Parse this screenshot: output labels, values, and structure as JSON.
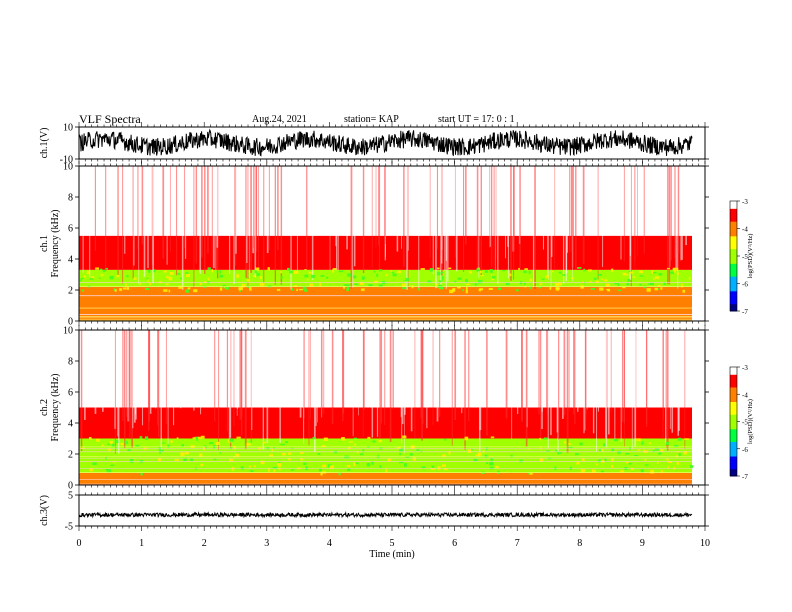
{
  "header": {
    "title": "VLF Spectra",
    "date": "Aug.24, 2021",
    "station": "station= KAP",
    "start": "start  UT =   17: 0  : 1"
  },
  "colormap": {
    "colors": [
      "#000080",
      "#0000ff",
      "#00b0ff",
      "#00ff40",
      "#a0ff00",
      "#ffff00",
      "#ff8000",
      "#ff0000",
      "#ffffff"
    ]
  },
  "chart_data": [
    {
      "type": "line",
      "ylabel": "ch.1(V)",
      "ylim": [
        -10,
        10
      ],
      "yticks": [
        "10",
        "-10"
      ],
      "xlim": [
        0,
        10
      ],
      "description_values": {
        "baseline": 0,
        "amplitude_range": [
          -7,
          7
        ]
      }
    },
    {
      "type": "heatmap",
      "ylabel": [
        "ch.1",
        "Frequency  (kHz)"
      ],
      "ylim": [
        0,
        10
      ],
      "yticks": [
        "0",
        "2",
        "4",
        "6",
        "8",
        "10"
      ],
      "xlim": [
        0,
        10
      ],
      "colorbar": {
        "label": "log(PSD)(V²/Hz)",
        "range": [
          -7,
          -3
        ],
        "ticks": [
          "-3",
          "-4",
          "-5",
          "-6",
          "-7"
        ]
      },
      "bands": [
        {
          "from_khz": 0,
          "to_khz": 2.2,
          "log_psd": -3.8
        },
        {
          "from_khz": 2.2,
          "to_khz": 3.3,
          "log_psd": -4.9
        },
        {
          "from_khz": 3.3,
          "to_khz": 5.5,
          "log_psd": -3.6
        },
        {
          "from_khz": 5.5,
          "to_khz": 10,
          "log_psd": -3.2
        }
      ]
    },
    {
      "type": "heatmap",
      "ylabel": [
        "ch.2",
        "Frequency  (kHz)"
      ],
      "ylim": [
        0,
        10
      ],
      "yticks": [
        "0",
        "2",
        "4",
        "6",
        "8",
        "10"
      ],
      "xlim": [
        0,
        10
      ],
      "colorbar": {
        "label": "log(PSD)(V²/Hz)",
        "range": [
          -7,
          -3
        ],
        "ticks": [
          "-3",
          "-4",
          "-5",
          "-6",
          "-7"
        ]
      },
      "bands": [
        {
          "from_khz": 0,
          "to_khz": 0.8,
          "log_psd": -3.9
        },
        {
          "from_khz": 0.8,
          "to_khz": 3.0,
          "log_psd": -5.0
        },
        {
          "from_khz": 3.0,
          "to_khz": 5.0,
          "log_psd": -3.6
        },
        {
          "from_khz": 5.0,
          "to_khz": 10,
          "log_psd": -3.2
        }
      ]
    },
    {
      "type": "line",
      "ylabel": "ch.3(V)",
      "ylim": [
        -5,
        5
      ],
      "yticks": [
        "5",
        "-5"
      ],
      "xlim": [
        0,
        10
      ],
      "description_values": {
        "baseline": -1.4,
        "amplitude_range": [
          -2.0,
          -0.8
        ]
      }
    }
  ],
  "xaxis": {
    "label": "Time  (min)",
    "ticks": [
      "0",
      "1",
      "2",
      "3",
      "4",
      "5",
      "6",
      "7",
      "8",
      "9",
      "10"
    ],
    "range": [
      0,
      10
    ]
  }
}
